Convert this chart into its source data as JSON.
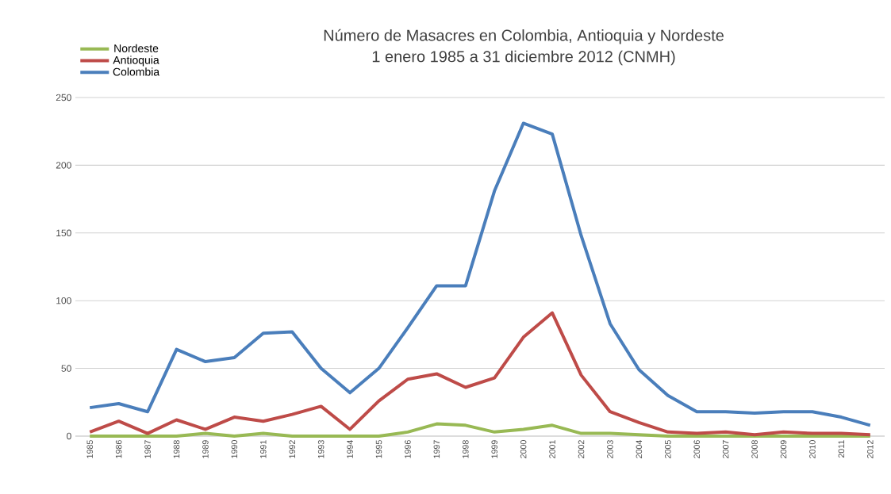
{
  "chart_data": {
    "type": "line",
    "title": "Número de Masacres en Colombia, Antioquia y Nordeste",
    "subtitle": "1 enero 1985 a 31 diciembre 2012 (CNMH)",
    "categories": [
      "1985",
      "1986",
      "1987",
      "1988",
      "1989",
      "1990",
      "1991",
      "1992",
      "1993",
      "1994",
      "1995",
      "1996",
      "1997",
      "1998",
      "1999",
      "2000",
      "2001",
      "2002",
      "2003",
      "2004",
      "2005",
      "2006",
      "2007",
      "2008",
      "2009",
      "2010",
      "2011",
      "2012"
    ],
    "series": [
      {
        "name": "Nordeste",
        "color": "#98b954",
        "values": [
          0,
          0,
          0,
          0,
          2,
          0,
          2,
          0,
          0,
          0,
          0,
          3,
          9,
          8,
          3,
          5,
          8,
          2,
          2,
          1,
          0,
          0,
          0,
          0,
          0,
          0,
          0,
          0
        ]
      },
      {
        "name": "Antioquia",
        "color": "#be4b48",
        "values": [
          3,
          11,
          2,
          12,
          5,
          14,
          11,
          16,
          22,
          5,
          26,
          42,
          46,
          36,
          43,
          73,
          91,
          45,
          18,
          10,
          3,
          2,
          3,
          1,
          3,
          2,
          2,
          1
        ]
      },
      {
        "name": "Colombia",
        "color": "#4a7ebb",
        "values": [
          21,
          24,
          18,
          64,
          55,
          58,
          76,
          77,
          50,
          32,
          50,
          80,
          111,
          111,
          181,
          231,
          223,
          148,
          83,
          49,
          30,
          18,
          18,
          17,
          18,
          18,
          14,
          8
        ]
      }
    ],
    "ylim": [
      0,
      250
    ],
    "yticks": [
      0,
      50,
      100,
      150,
      200,
      250
    ],
    "grid": "y",
    "legend": "top left",
    "marker": "none",
    "line_style": "solid"
  }
}
